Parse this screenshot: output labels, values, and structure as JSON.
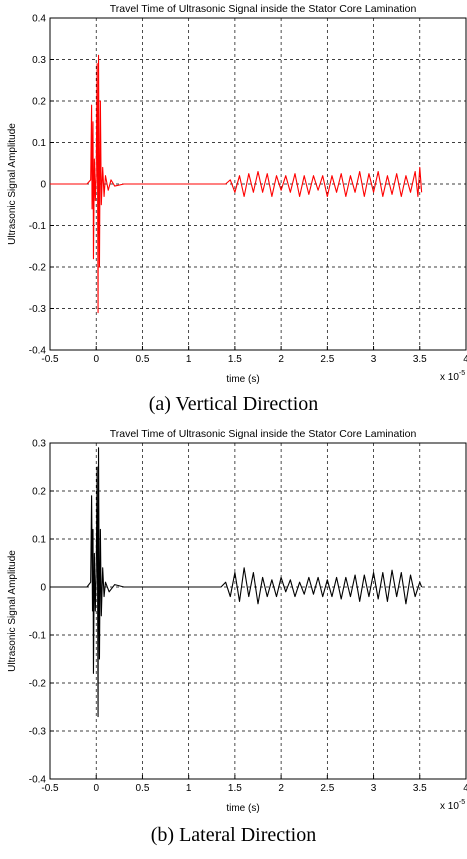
{
  "chart_data": [
    {
      "type": "line",
      "title": "Travel Time of Ultrasonic Signal inside the Stator Core Lamination",
      "xlabel": "time (s)",
      "ylabel": "Ultrasonic Signal Amplitude",
      "x_multiplier": "x 10",
      "x_exponent": "-5",
      "xlim": [
        -0.5,
        4
      ],
      "ylim": [
        -0.4,
        0.4
      ],
      "xticks": [
        "-0.5",
        "0",
        "0.5",
        "1",
        "1.5",
        "2",
        "2.5",
        "3",
        "3.5",
        "4"
      ],
      "yticks": [
        "0.4",
        "0.3",
        "0.2",
        "0.1",
        "0",
        "-0.1",
        "-0.2",
        "-0.3",
        "-0.4"
      ],
      "grid": true,
      "series": [
        {
          "color": "#ff0000",
          "points": [
            [
              -0.5,
              0
            ],
            [
              -0.1,
              0
            ],
            [
              -0.06,
              0.01
            ],
            [
              -0.05,
              0.19
            ],
            [
              -0.045,
              -0.06
            ],
            [
              -0.035,
              0.15
            ],
            [
              -0.03,
              -0.18
            ],
            [
              -0.02,
              0.06
            ],
            [
              -0.01,
              -0.04
            ],
            [
              0,
              0.02
            ],
            [
              0.01,
              0.29
            ],
            [
              0.02,
              -0.31
            ],
            [
              0.025,
              0.31
            ],
            [
              0.035,
              -0.2
            ],
            [
              0.045,
              0.2
            ],
            [
              0.055,
              -0.05
            ],
            [
              0.07,
              0.04
            ],
            [
              0.085,
              -0.03
            ],
            [
              0.1,
              0.02
            ],
            [
              0.13,
              -0.015
            ],
            [
              0.16,
              0.01
            ],
            [
              0.2,
              -0.005
            ],
            [
              0.3,
              0
            ],
            [
              1.4,
              0
            ],
            [
              1.45,
              0.01
            ],
            [
              1.5,
              -0.02
            ],
            [
              1.55,
              0.02
            ],
            [
              1.6,
              -0.03
            ],
            [
              1.65,
              0.025
            ],
            [
              1.7,
              -0.02
            ],
            [
              1.75,
              0.03
            ],
            [
              1.8,
              -0.02
            ],
            [
              1.85,
              0.025
            ],
            [
              1.9,
              -0.03
            ],
            [
              1.95,
              0.02
            ],
            [
              2.0,
              -0.015
            ],
            [
              2.05,
              0.02
            ],
            [
              2.1,
              -0.02
            ],
            [
              2.15,
              0.025
            ],
            [
              2.2,
              -0.03
            ],
            [
              2.25,
              0.02
            ],
            [
              2.3,
              -0.025
            ],
            [
              2.35,
              0.02
            ],
            [
              2.4,
              -0.015
            ],
            [
              2.45,
              0.02
            ],
            [
              2.5,
              -0.03
            ],
            [
              2.55,
              0.02
            ],
            [
              2.6,
              -0.02
            ],
            [
              2.65,
              0.025
            ],
            [
              2.7,
              -0.03
            ],
            [
              2.75,
              0.02
            ],
            [
              2.8,
              -0.02
            ],
            [
              2.85,
              0.03
            ],
            [
              2.9,
              -0.03
            ],
            [
              2.95,
              0.025
            ],
            [
              3.0,
              -0.02
            ],
            [
              3.05,
              0.03
            ],
            [
              3.1,
              -0.03
            ],
            [
              3.15,
              0.02
            ],
            [
              3.2,
              -0.025
            ],
            [
              3.25,
              0.025
            ],
            [
              3.3,
              -0.03
            ],
            [
              3.35,
              0.02
            ],
            [
              3.4,
              -0.02
            ],
            [
              3.45,
              0.03
            ],
            [
              3.48,
              -0.03
            ],
            [
              3.5,
              0.04
            ],
            [
              3.52,
              -0.02
            ]
          ]
        }
      ]
    },
    {
      "type": "line",
      "title": "Travel Time of Ultrasonic Signal inside the Stator Core Lamination",
      "xlabel": "time (s)",
      "ylabel": "Ultrasonic Signal Amplitude",
      "x_multiplier": "x 10",
      "x_exponent": "-5",
      "xlim": [
        -0.5,
        4
      ],
      "ylim": [
        -0.4,
        0.3
      ],
      "xticks": [
        "-0.5",
        "0",
        "0.5",
        "1",
        "1.5",
        "2",
        "2.5",
        "3",
        "3.5",
        "4"
      ],
      "yticks": [
        "0.3",
        "0.2",
        "0.1",
        "0",
        "-0.1",
        "-0.2",
        "-0.3",
        "-0.4"
      ],
      "grid": true,
      "series": [
        {
          "color": "#000000",
          "points": [
            [
              -0.5,
              0
            ],
            [
              -0.1,
              0
            ],
            [
              -0.06,
              0.01
            ],
            [
              -0.05,
              0.19
            ],
            [
              -0.04,
              -0.05
            ],
            [
              -0.035,
              0.12
            ],
            [
              -0.03,
              -0.18
            ],
            [
              -0.02,
              0.07
            ],
            [
              -0.01,
              -0.05
            ],
            [
              0,
              0.03
            ],
            [
              0.01,
              0.25
            ],
            [
              0.02,
              -0.27
            ],
            [
              0.025,
              0.29
            ],
            [
              0.035,
              -0.15
            ],
            [
              0.045,
              0.12
            ],
            [
              0.055,
              -0.06
            ],
            [
              0.07,
              0.04
            ],
            [
              0.085,
              -0.02
            ],
            [
              0.1,
              0.01
            ],
            [
              0.14,
              -0.01
            ],
            [
              0.2,
              0.005
            ],
            [
              0.3,
              0
            ],
            [
              1.35,
              0
            ],
            [
              1.4,
              0.01
            ],
            [
              1.45,
              -0.02
            ],
            [
              1.5,
              0.03
            ],
            [
              1.55,
              -0.03
            ],
            [
              1.6,
              0.04
            ],
            [
              1.65,
              -0.02
            ],
            [
              1.7,
              0.03
            ],
            [
              1.75,
              -0.035
            ],
            [
              1.8,
              0.02
            ],
            [
              1.85,
              -0.02
            ],
            [
              1.9,
              0.015
            ],
            [
              1.95,
              -0.02
            ],
            [
              2.0,
              0.02
            ],
            [
              2.05,
              -0.01
            ],
            [
              2.1,
              0.015
            ],
            [
              2.15,
              -0.02
            ],
            [
              2.2,
              0.01
            ],
            [
              2.25,
              -0.015
            ],
            [
              2.3,
              0.02
            ],
            [
              2.35,
              -0.015
            ],
            [
              2.4,
              0.02
            ],
            [
              2.45,
              -0.02
            ],
            [
              2.5,
              0.015
            ],
            [
              2.55,
              -0.02
            ],
            [
              2.6,
              0.02
            ],
            [
              2.65,
              -0.025
            ],
            [
              2.7,
              0.02
            ],
            [
              2.75,
              -0.02
            ],
            [
              2.8,
              0.025
            ],
            [
              2.85,
              -0.03
            ],
            [
              2.9,
              0.025
            ],
            [
              2.95,
              -0.02
            ],
            [
              3.0,
              0.03
            ],
            [
              3.05,
              -0.025
            ],
            [
              3.1,
              0.03
            ],
            [
              3.15,
              -0.03
            ],
            [
              3.2,
              0.035
            ],
            [
              3.25,
              -0.02
            ],
            [
              3.3,
              0.03
            ],
            [
              3.35,
              -0.035
            ],
            [
              3.4,
              0.025
            ],
            [
              3.45,
              -0.02
            ],
            [
              3.5,
              0.01
            ],
            [
              3.52,
              0
            ]
          ]
        }
      ]
    }
  ],
  "captions": {
    "a": "(a) Vertical Direction",
    "b": "(b) Lateral Direction"
  }
}
